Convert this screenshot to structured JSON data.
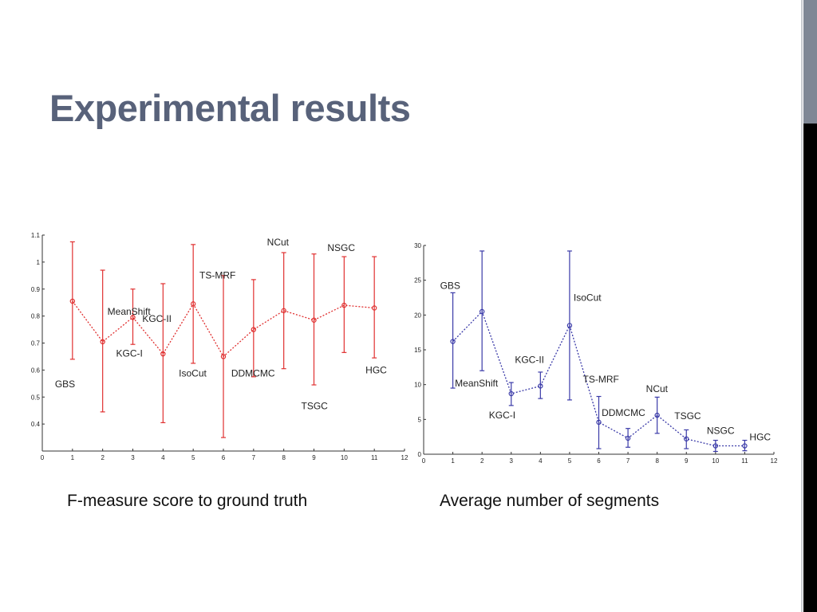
{
  "slide": {
    "title": "Experimental results"
  },
  "colors": {
    "title": "#58627a",
    "left_series": "#e03030",
    "right_series": "#3a3aa8",
    "strip_gray": "#7f8795",
    "strip_black": "#000000"
  },
  "chart_data": [
    {
      "type": "line",
      "caption": "F-measure score to ground truth",
      "x": [
        1,
        2,
        3,
        4,
        5,
        6,
        7,
        8,
        9,
        10,
        11
      ],
      "labels": [
        "GBS",
        "MeanShift",
        "KGC-I",
        "KGC-II",
        "IsoCut",
        "TS-MRF",
        "DDMCMC",
        "NCut",
        "TSGC",
        "NSGC",
        "HGC"
      ],
      "values": [
        0.855,
        0.705,
        0.795,
        0.66,
        0.845,
        0.65,
        0.75,
        0.82,
        0.785,
        0.84,
        0.83
      ],
      "err_low": [
        0.64,
        0.445,
        0.695,
        0.405,
        0.625,
        0.35,
        0.575,
        0.605,
        0.545,
        0.665,
        0.645
      ],
      "err_high": [
        1.075,
        0.97,
        0.9,
        0.92,
        1.065,
        0.95,
        0.935,
        1.035,
        1.03,
        1.02,
        1.02
      ],
      "xlim": [
        0,
        12
      ],
      "ylim": [
        0.3,
        1.1
      ],
      "xticks": [
        "0",
        "1",
        "2",
        "3",
        "4",
        "5",
        "6",
        "7",
        "8",
        "9",
        "10",
        "11",
        "12"
      ],
      "yticks": [
        "0.4",
        "0.5",
        "0.6",
        "0.7",
        "0.8",
        "0.9",
        "1",
        "1.1"
      ],
      "grid": false,
      "color": "#e03030"
    },
    {
      "type": "line",
      "caption": "Average number of segments",
      "x": [
        1,
        2,
        3,
        4,
        5,
        6,
        7,
        8,
        9,
        10,
        11
      ],
      "labels": [
        "GBS",
        "MeanShift",
        "KGC-I",
        "KGC-II",
        "IsoCut",
        "TS-MRF",
        "DDMCMC",
        "NCut",
        "TSGC",
        "NSGC",
        "HGC"
      ],
      "values": [
        16.2,
        20.5,
        8.7,
        9.8,
        18.5,
        4.6,
        2.3,
        5.6,
        2.2,
        1.2,
        1.2
      ],
      "err_low": [
        9.5,
        12.0,
        7.0,
        8.0,
        7.8,
        0.8,
        1.0,
        3.0,
        0.8,
        0.4,
        0.5
      ],
      "err_high": [
        23.2,
        29.2,
        10.3,
        11.8,
        29.2,
        8.3,
        3.7,
        8.2,
        3.5,
        2.0,
        2.0
      ],
      "xlim": [
        0,
        12
      ],
      "ylim": [
        0,
        30
      ],
      "xticks": [
        "0",
        "1",
        "2",
        "3",
        "4",
        "5",
        "6",
        "7",
        "8",
        "9",
        "10",
        "11",
        "12"
      ],
      "yticks": [
        "0",
        "5",
        "10",
        "15",
        "20",
        "25",
        "30"
      ],
      "grid": false,
      "color": "#3a3aa8"
    }
  ]
}
